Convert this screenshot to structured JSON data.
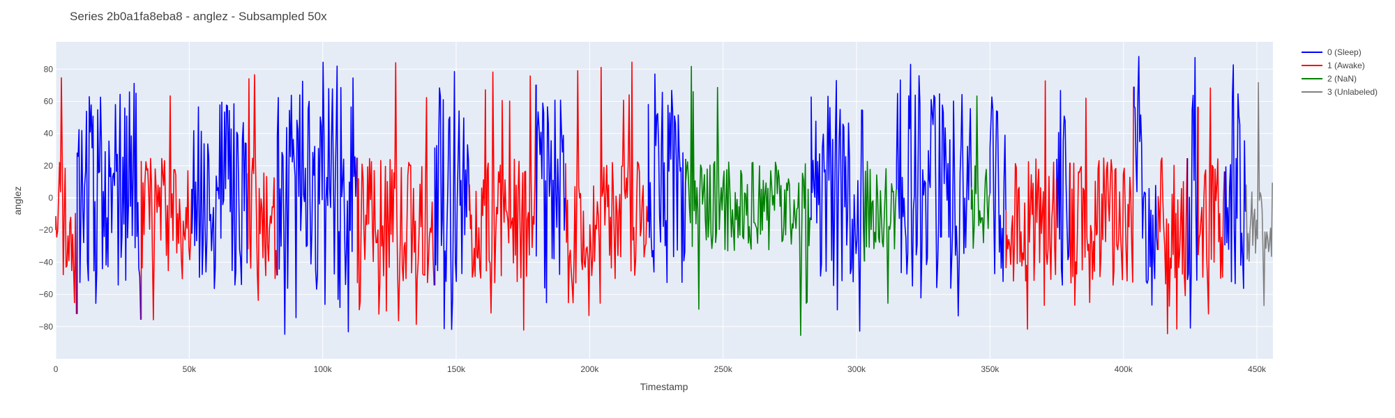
{
  "chart_data": {
    "type": "line",
    "title": "Series 2b0a1fa8eba8 - anglez - Subsampled 50x",
    "xlabel": "Timestamp",
    "ylabel": "anglez",
    "xlim": [
      0,
      456000
    ],
    "ylim": [
      -100,
      97
    ],
    "x_ticks": [
      0,
      50000,
      100000,
      150000,
      200000,
      250000,
      300000,
      350000,
      400000,
      450000
    ],
    "x_tick_labels": [
      "0",
      "50k",
      "100k",
      "150k",
      "200k",
      "250k",
      "300k",
      "350k",
      "400k",
      "450k"
    ],
    "y_ticks": [
      -80,
      -60,
      -40,
      -20,
      0,
      20,
      40,
      60,
      80
    ],
    "y_tick_labels": [
      "−80",
      "−60",
      "−40",
      "−20",
      "0",
      "20",
      "40",
      "60",
      "80"
    ],
    "grid": true,
    "legend_position": "top-right, outside plot",
    "series": [
      {
        "name": "0 (Sleep)",
        "color": "#0000ff",
        "segments": [
          [
            8000,
            32000
          ],
          [
            51000,
            72000
          ],
          [
            83000,
            113000
          ],
          [
            142000,
            155000
          ],
          [
            180000,
            191000
          ],
          [
            222000,
            236000
          ],
          [
            283000,
            303000
          ],
          [
            315000,
            343000
          ],
          [
            350000,
            356000
          ],
          [
            375000,
            380000
          ],
          [
            404000,
            413000
          ],
          [
            424000,
            428000
          ],
          [
            438000,
            446000
          ]
        ]
      },
      {
        "name": "1 (Awake)",
        "color": "#ff0000",
        "segments": [
          [
            0,
            8000
          ],
          [
            32000,
            51000
          ],
          [
            72000,
            83000
          ],
          [
            113000,
            142000
          ],
          [
            155000,
            180000
          ],
          [
            191000,
            222000
          ],
          [
            356000,
            375000
          ],
          [
            380000,
            404000
          ],
          [
            413000,
            424000
          ],
          [
            428000,
            438000
          ]
        ]
      },
      {
        "name": "2 (NaN)",
        "color": "#008000",
        "segments": [
          [
            236000,
            283000
          ],
          [
            303000,
            315000
          ],
          [
            343000,
            350000
          ]
        ]
      },
      {
        "name": "3 (Unlabeled)",
        "color": "#808080",
        "segments": [
          [
            446000,
            456000
          ]
        ]
      }
    ]
  }
}
